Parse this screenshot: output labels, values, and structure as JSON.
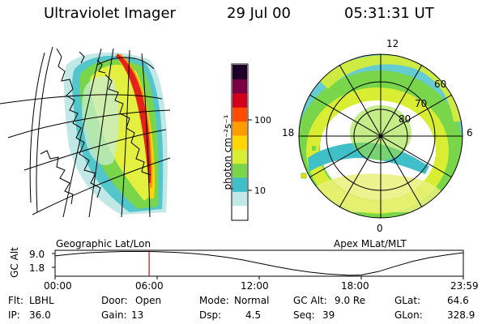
{
  "header": {
    "instrument": "Ultraviolet Imager",
    "date": "29 Jul 00",
    "time": "05:31:31 UT"
  },
  "panels": {
    "geographic_caption": "Geographic Lat/Lon",
    "apex_caption": "Apex MLat/MLT",
    "apex_mlt_labels": [
      "12",
      "18",
      "6",
      "0"
    ],
    "apex_lat_labels": [
      "60",
      "70",
      "80"
    ]
  },
  "colorbar": {
    "label": "photon cm⁻²s⁻¹",
    "ticks": [
      "100",
      "10"
    ],
    "scale": "log",
    "colors": [
      "#ffffff",
      "#bfe8e6",
      "#3fbfc7",
      "#79d64a",
      "#d9ee33",
      "#ffd600",
      "#ff9a00",
      "#ff4a00",
      "#d0001c",
      "#7a0043",
      "#1c0028"
    ]
  },
  "chart_data": {
    "type": "line",
    "title": "",
    "ylabel": "GC Alt",
    "yticks": [
      "9.0",
      "1.8"
    ],
    "xticks": [
      "00:00",
      "06:00",
      "12:00",
      "18:00",
      "23:59"
    ],
    "x_hours": [
      0,
      1,
      2,
      3,
      4,
      5,
      5.53,
      6,
      7,
      8,
      9,
      10,
      11,
      12,
      13,
      14,
      15,
      16,
      17,
      17.3,
      18,
      19,
      20,
      21,
      22,
      23,
      23.98
    ],
    "y_re": [
      7.6,
      8.2,
      8.6,
      8.85,
      9.0,
      9.0,
      9.0,
      8.95,
      8.75,
      8.4,
      7.9,
      7.2,
      6.3,
      5.2,
      4.1,
      3.1,
      2.3,
      1.7,
      1.4,
      1.3,
      1.4,
      2.5,
      4.2,
      5.8,
      7.0,
      7.9,
      8.6
    ],
    "current_time_hours": 5.53,
    "ylim": [
      1.0,
      9.4
    ],
    "current_marker_color": "#d01010"
  },
  "info": {
    "row1": [
      {
        "label": "Flt:",
        "value": "LBHL"
      },
      {
        "label": "Door:",
        "value": "Open"
      },
      {
        "label": "Mode:",
        "value": "Normal"
      },
      {
        "label": "GC Alt:",
        "value": "9.0 Re"
      },
      {
        "label": "GLat:",
        "value": "64.6"
      }
    ],
    "row2": [
      {
        "label": "IP:",
        "value": "36.0"
      },
      {
        "label": "Gain:",
        "value": "13"
      },
      {
        "label": "Dsp:",
        "value": "4.5"
      },
      {
        "label": "Seq:",
        "value": "39"
      },
      {
        "label": "GLon:",
        "value": "328.9"
      }
    ]
  }
}
